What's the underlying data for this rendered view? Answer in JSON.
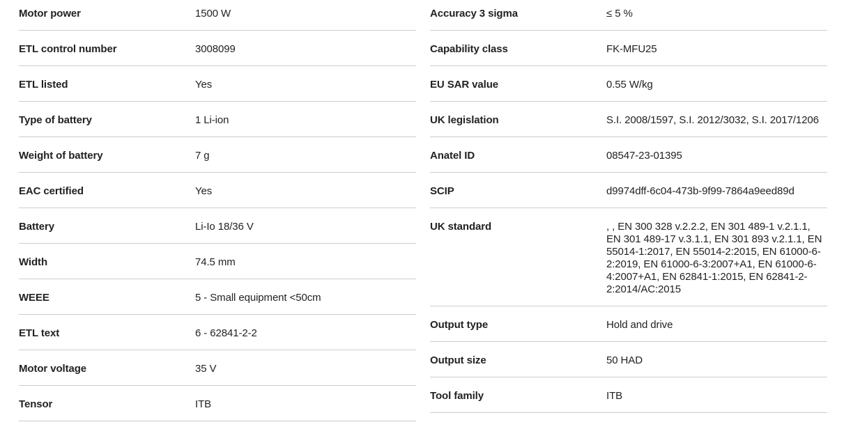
{
  "page": {
    "background_color": "#ffffff",
    "text_color": "#222222",
    "label_color": "#222222",
    "divider_color": "#cccccc"
  },
  "spec_table": {
    "left_column": [
      {
        "label": "Motor power",
        "value": "1500 W"
      },
      {
        "label": "ETL control number",
        "value": "3008099"
      },
      {
        "label": "ETL listed",
        "value": "Yes"
      },
      {
        "label": "Type of battery",
        "value": "1 Li-ion"
      },
      {
        "label": "Weight of battery",
        "value": "7 g"
      },
      {
        "label": "EAC certified",
        "value": "Yes"
      },
      {
        "label": "Battery",
        "value": "Li-Io 18/36 V"
      },
      {
        "label": "Width",
        "value": "74.5 mm"
      },
      {
        "label": "WEEE",
        "value": "5 - Small equipment <50cm"
      },
      {
        "label": "ETL text",
        "value": "6 - 62841-2-2"
      },
      {
        "label": "Motor voltage",
        "value": "35 V"
      },
      {
        "label": "Tensor",
        "value": "ITB"
      }
    ],
    "right_column": [
      {
        "label": "Accuracy 3 sigma",
        "value": "≤ 5 %"
      },
      {
        "label": "Capability class",
        "value": "FK-MFU25"
      },
      {
        "label": "EU SAR value",
        "value": "0.55 W/kg"
      },
      {
        "label": "UK legislation",
        "value": "S.I. 2008/1597, S.I. 2012/3032, S.I. 2017/1206"
      },
      {
        "label": "Anatel ID",
        "value": "08547-23-01395"
      },
      {
        "label": "SCIP",
        "value": "d9974dff-6c04-473b-9f99-7864a9eed89d"
      },
      {
        "label": "UK standard",
        "value": ", , EN 300 328 v.2.2.2, EN 301 489-1 v.2.1.1, EN 301 489-17 v.3.1.1, EN 301 893 v.2.1.1, EN 55014-1:2017, EN 55014-2:2015, EN 61000-6-2:2019, EN 61000-6-3:2007+A1, EN 61000-6-4:2007+A1, EN 62841-1:2015, EN 62841-2-2:2014/AC:2015"
      },
      {
        "label": "Output type",
        "value": "Hold and drive"
      },
      {
        "label": "Output size",
        "value": "50 HAD"
      },
      {
        "label": "Tool family",
        "value": "ITB"
      }
    ]
  }
}
